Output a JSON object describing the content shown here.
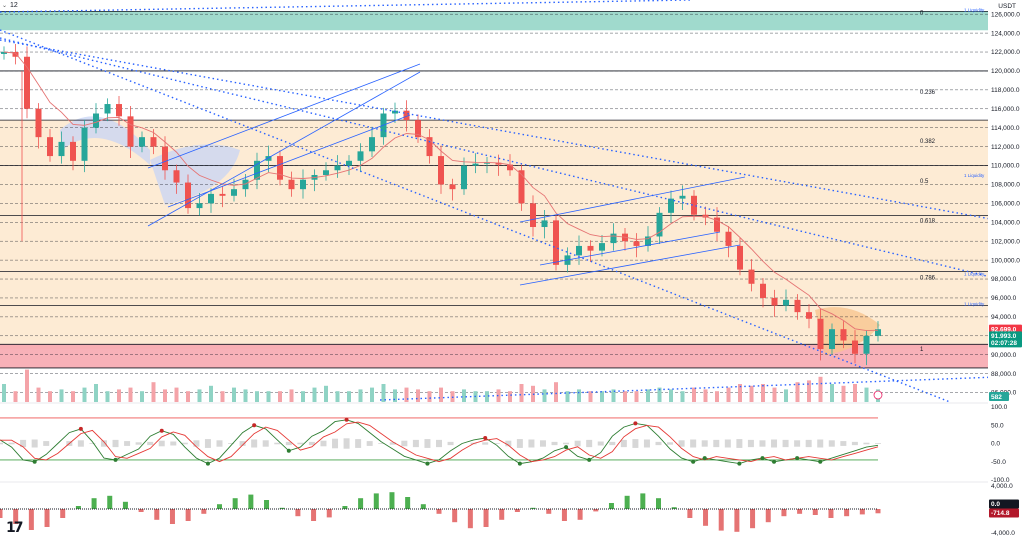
{
  "header": {
    "interval": "12",
    "currency": "USDT"
  },
  "price_axis": {
    "ticks": [
      "126,000.0",
      "124,000.0",
      "122,000.0",
      "120,000.0",
      "118,000.0",
      "116,000.0",
      "114,000.0",
      "112,000.0",
      "110,000.0",
      "108,000.0",
      "106,000.0",
      "104,000.0",
      "102,000.0",
      "100,000.0",
      "98,000.0",
      "96,000.0",
      "94,000.0",
      "90,000.0",
      "88,000.0",
      "86,000.0"
    ],
    "price_tags": [
      {
        "label": "92,699.0",
        "value": 92699,
        "color": "#f23645"
      },
      {
        "label": "91,993.0",
        "value": 91993,
        "color": "#089981"
      },
      {
        "label": "02:07:28",
        "value": 91250,
        "color": "#089981"
      }
    ],
    "volume_tag": {
      "label": "582",
      "color": "#26a69a"
    }
  },
  "fibonacci": [
    {
      "label": "0",
      "value": 126200
    },
    {
      "label": "0.236",
      "value": 117800
    },
    {
      "label": "0.382",
      "value": 112600
    },
    {
      "label": "0.5",
      "value": 108400
    },
    {
      "label": "0.618",
      "value": 104200
    },
    {
      "label": "0.786",
      "value": 98200
    },
    {
      "label": "1",
      "value": 90600
    }
  ],
  "liquidity_labels": [
    {
      "label": "1 Liquidity",
      "value": 126300
    },
    {
      "label": "1 Liquidity",
      "value": 108800
    },
    {
      "label": "1 Liquidity",
      "value": 98400
    },
    {
      "label": "1 Liquidity",
      "value": 95200
    }
  ],
  "rsi_axis": {
    "ticks": [
      "100.0",
      "50.0",
      "0.0",
      "-50.0",
      "-100.0"
    ]
  },
  "macd_axis": {
    "ticks": [
      "4,000.0",
      "-4,000.0"
    ],
    "tags": [
      {
        "label": "0.0",
        "color": "#131722"
      },
      {
        "label": "-714.8",
        "color": "#b2182b"
      }
    ]
  },
  "logo": "17",
  "colors": {
    "up": "#26a69a",
    "down": "#ef5350",
    "ema": "#e57373",
    "channel": "#2962ff",
    "fib_zone": "#fde9cf",
    "teal_zone": "#8fd3c4",
    "red_zone": "#f7a8b0",
    "osc_fast": "#2e7d32",
    "osc_slow": "#e53935",
    "hist_up": "#4caf50",
    "hist_down": "#e57373"
  },
  "chart_data": [
    {
      "type": "candlestick",
      "title": "",
      "y_unit": "USDT",
      "ylim": [
        85000,
        127500
      ],
      "grid": true,
      "close_approx": [
        122000,
        121500,
        116000,
        113000,
        111000,
        112500,
        110500,
        114000,
        115500,
        116500,
        115200,
        112000,
        113000,
        112000,
        109500,
        108200,
        105500,
        106000,
        107000,
        106800,
        107500,
        108500,
        110500,
        111000,
        108500,
        107500,
        108500,
        109000,
        109500,
        110000,
        110500,
        111500,
        113000,
        115500,
        115800,
        114800,
        113000,
        111000,
        108000,
        107500,
        110000,
        110200,
        110300,
        110100,
        109500,
        106000,
        103500,
        104200,
        99500,
        100500,
        101500,
        101000,
        101800,
        102800,
        102000,
        101500,
        102500,
        105000,
        106500,
        106800,
        104800,
        104500,
        103000,
        101500,
        99000,
        97500,
        96000,
        95200,
        95800,
        94500,
        93800,
        90600,
        92700,
        91500,
        90100,
        92000,
        92699
      ]
    },
    {
      "type": "bar",
      "title": "",
      "description": "volume",
      "values_relative": [
        0.5,
        0.3,
        0.9,
        0.4,
        0.3,
        0.35,
        0.3,
        0.4,
        0.5,
        0.3,
        0.35,
        0.4,
        0.3,
        0.55,
        0.35,
        0.4,
        0.3,
        0.35,
        0.45,
        0.3,
        0.4,
        0.35,
        0.3,
        0.3,
        0.3,
        0.35,
        0.3,
        0.4,
        0.45,
        0.3,
        0.3,
        0.35,
        0.4,
        0.5,
        0.35,
        0.4,
        0.35,
        0.3,
        0.4,
        0.3,
        0.35,
        0.3,
        0.3,
        0.35,
        0.3,
        0.5,
        0.45,
        0.35,
        0.55,
        0.3,
        0.35,
        0.3,
        0.3,
        0.35,
        0.3,
        0.3,
        0.35,
        0.4,
        0.35,
        0.3,
        0.4,
        0.35,
        0.3,
        0.4,
        0.5,
        0.45,
        0.5,
        0.4,
        0.35,
        0.55,
        0.6,
        0.7,
        0.5,
        0.45,
        0.5,
        0.4,
        0.35
      ]
    },
    {
      "type": "line",
      "title": "",
      "ylim": [
        -100,
        100
      ],
      "series_approx": [
        10,
        -10,
        -45,
        -50,
        -30,
        0,
        30,
        40,
        5,
        -40,
        -45,
        -30,
        -15,
        20,
        35,
        25,
        -10,
        -40,
        -55,
        -40,
        -5,
        30,
        50,
        40,
        10,
        -20,
        -10,
        20,
        35,
        60,
        65,
        55,
        30,
        5,
        -15,
        -35,
        -45,
        -55,
        -45,
        -20,
        0,
        10,
        15,
        -5,
        -35,
        -55,
        -50,
        -40,
        -20,
        -10,
        -35,
        -45,
        -25,
        20,
        45,
        55,
        50,
        20,
        -15,
        -40,
        -50,
        -40,
        -45,
        -50,
        -55,
        -45,
        -40,
        -50,
        -45,
        -40,
        -45,
        -50,
        -40,
        -30,
        -20,
        -10,
        -5
      ]
    },
    {
      "type": "bar",
      "title": "",
      "description": "macd histogram",
      "ylim": [
        -4000,
        4000
      ],
      "values": [
        -1500,
        -2500,
        -3500,
        -3000,
        -1500,
        500,
        1800,
        2200,
        1200,
        -500,
        -1800,
        -2500,
        -2000,
        -800,
        800,
        1800,
        2400,
        1500,
        200,
        -1200,
        -2000,
        -1400,
        500,
        1800,
        2600,
        2800,
        2000,
        800,
        -800,
        -2200,
        -3200,
        -3000,
        -1800,
        -500,
        200,
        -800,
        -2000,
        -1800,
        -400,
        1000,
        2200,
        2600,
        1800,
        300,
        -1500,
        -2800,
        -3600,
        -3800,
        -3200,
        -2200,
        -1200,
        -800,
        -1000,
        -1500,
        -1200,
        -900,
        -714.8
      ]
    }
  ]
}
